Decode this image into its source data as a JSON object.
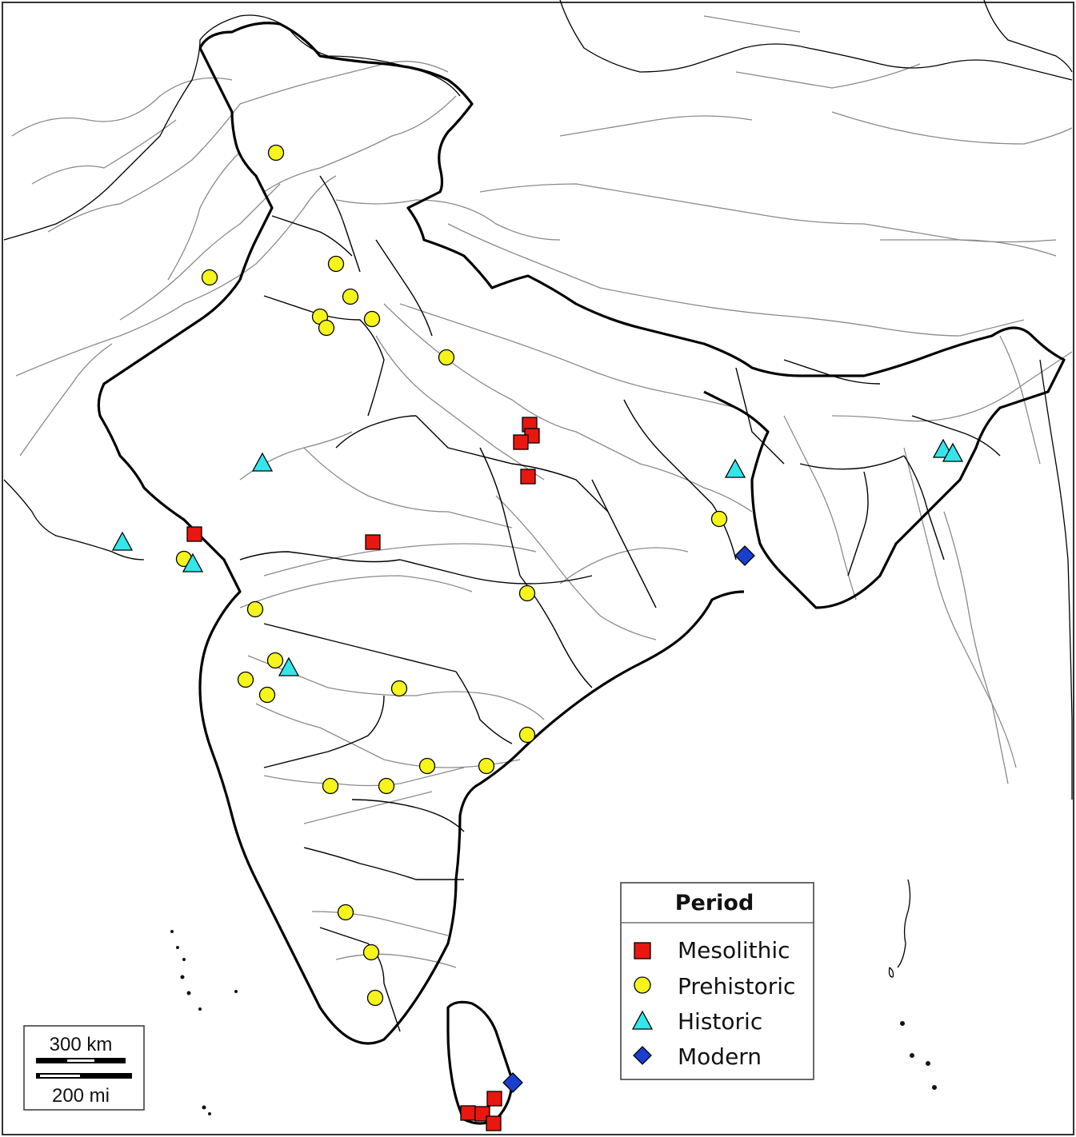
{
  "legend": {
    "title": "Period",
    "items": [
      {
        "key": "mesolithic",
        "label": "Mesolithic",
        "marker": "square-icon",
        "color": "#e8170f"
      },
      {
        "key": "prehistoric",
        "label": "Prehistoric",
        "marker": "circle-icon",
        "color": "#f5f51c"
      },
      {
        "key": "historic",
        "label": "Historic",
        "marker": "triangle-icon",
        "color": "#33e6ea"
      },
      {
        "key": "modern",
        "label": "Modern",
        "marker": "diamond-icon",
        "color": "#1a3fcf"
      }
    ]
  },
  "scale_bar": {
    "km_label": "300 km",
    "mi_label": "200 mi"
  }
}
